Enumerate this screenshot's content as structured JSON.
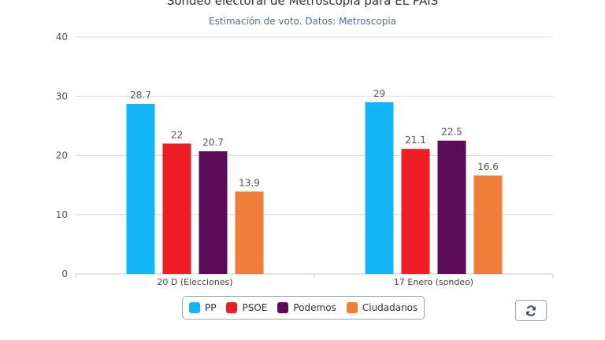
{
  "chart_data": {
    "type": "bar",
    "title": "Sondeo electoral de Metroscopia para EL PAÍS",
    "subtitle": "Estimación de voto. Datos: Metroscopia",
    "categories": [
      "20 D (Elecciones)",
      "17 Enero (sondeo)"
    ],
    "series": [
      {
        "name": "PP",
        "color": "#12b5f5",
        "values": [
          28.7,
          29
        ]
      },
      {
        "name": "PSOE",
        "color": "#ee1c25",
        "values": [
          22,
          21.1
        ]
      },
      {
        "name": "Podemos",
        "color": "#5c0a5a",
        "values": [
          20.7,
          22.5
        ]
      },
      {
        "name": "Ciudadanos",
        "color": "#f07d39",
        "values": [
          13.9,
          16.6
        ]
      }
    ],
    "data_labels": [
      [
        "28.7",
        "29"
      ],
      [
        "22",
        "21.1"
      ],
      [
        "20.7",
        "22.5"
      ],
      [
        "13.9",
        "16.6"
      ]
    ],
    "yticks": [
      "0",
      "10",
      "20",
      "30",
      "40"
    ],
    "ylim": [
      0,
      40
    ],
    "grid": true,
    "legend_position": "bottom-center"
  },
  "legend": {
    "items": [
      {
        "label": "PP",
        "color": "#12b5f5"
      },
      {
        "label": "PSOE",
        "color": "#ee1c25"
      },
      {
        "label": "Podemos",
        "color": "#5c0a5a"
      },
      {
        "label": "Ciudadanos",
        "color": "#f07d39"
      }
    ]
  },
  "controls": {
    "refresh_icon": "refresh-icon"
  }
}
